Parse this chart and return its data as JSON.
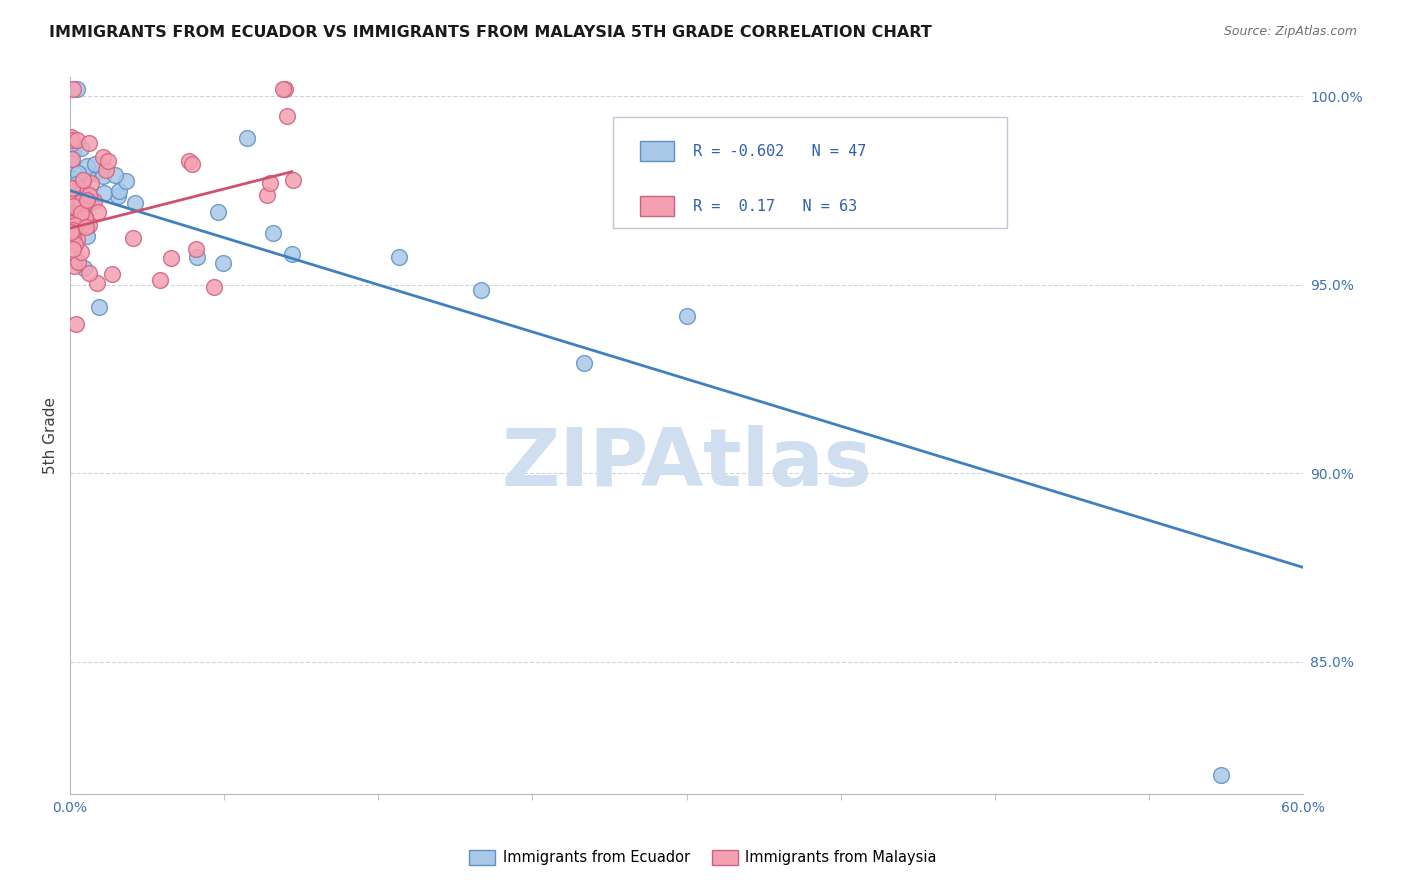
{
  "title": "IMMIGRANTS FROM ECUADOR VS IMMIGRANTS FROM MALAYSIA 5TH GRADE CORRELATION CHART",
  "source": "Source: ZipAtlas.com",
  "ylabel": "5th Grade",
  "xlim": [
    0.0,
    0.6
  ],
  "ylim": [
    0.815,
    1.005
  ],
  "xtick_labels_ends": [
    "0.0%",
    "60.0%"
  ],
  "xtick_values_ends": [
    0.0,
    0.6
  ],
  "xtick_minor_values": [
    0.075,
    0.15,
    0.225,
    0.3,
    0.375,
    0.45,
    0.525
  ],
  "ytick_labels": [
    "85.0%",
    "90.0%",
    "95.0%",
    "100.0%"
  ],
  "ytick_values": [
    0.85,
    0.9,
    0.95,
    1.0
  ],
  "blue_R": -0.602,
  "blue_N": 47,
  "pink_R": 0.17,
  "pink_N": 63,
  "blue_color": "#a8c8e8",
  "pink_color": "#f4a0b0",
  "blue_edge_color": "#6090c0",
  "pink_edge_color": "#d06080",
  "blue_line_color": "#4080c0",
  "pink_line_color": "#d05070",
  "watermark": "ZIPAtlas",
  "watermark_color": "#d0dff0",
  "grid_color": "#c8d0e0",
  "spine_color": "#b0b8c8",
  "tick_color": "#4070b0",
  "title_color": "#1a1a1a",
  "source_color": "#707070",
  "legend_bg": "#ffffff",
  "legend_edge": "#c0c8d8",
  "legend_text_color": "#3060b0"
}
